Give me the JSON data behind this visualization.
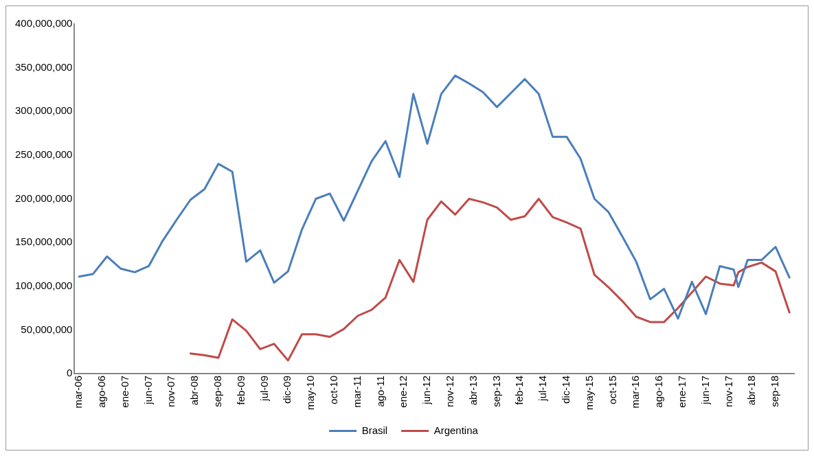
{
  "chart_data": {
    "type": "line",
    "x": [
      "2006-03",
      "2006-06",
      "2006-09",
      "2006-12",
      "2007-03",
      "2007-06",
      "2007-09",
      "2007-12",
      "2008-03",
      "2008-06",
      "2008-09",
      "2008-12",
      "2009-03",
      "2009-06",
      "2009-09",
      "2009-12",
      "2010-03",
      "2010-06",
      "2010-09",
      "2010-12",
      "2011-03",
      "2011-06",
      "2011-09",
      "2011-12",
      "2012-03",
      "2012-06",
      "2012-09",
      "2012-12",
      "2013-03",
      "2013-06",
      "2013-09",
      "2013-12",
      "2014-03",
      "2014-06",
      "2014-09",
      "2014-12",
      "2015-03",
      "2015-06",
      "2015-09",
      "2015-12",
      "2016-03",
      "2016-06",
      "2016-09",
      "2016-12",
      "2017-03",
      "2017-06",
      "2017-09",
      "2017-12",
      "2018-01",
      "2018-03",
      "2018-06",
      "2018-09",
      "2018-12"
    ],
    "series": [
      {
        "name": "Brasil",
        "color": "#4a7ebb",
        "values": [
          111000000,
          114000000,
          134000000,
          120000000,
          116000000,
          123000000,
          152000000,
          176000000,
          199000000,
          211000000,
          240000000,
          231000000,
          128000000,
          141000000,
          104000000,
          117000000,
          165000000,
          200000000,
          206000000,
          175000000,
          209000000,
          243000000,
          266000000,
          225000000,
          320000000,
          263000000,
          320000000,
          341000000,
          332000000,
          322000000,
          305000000,
          321000000,
          337000000,
          320000000,
          271000000,
          271000000,
          246000000,
          200000000,
          185000000,
          157000000,
          128000000,
          85000000,
          97000000,
          63000000,
          105000000,
          68000000,
          123000000,
          119000000,
          99000000,
          130000000,
          130000000,
          145000000,
          110000000
        ]
      },
      {
        "name": "Argentina",
        "color": "#be4b48",
        "values": [
          null,
          null,
          null,
          null,
          null,
          null,
          null,
          null,
          23000000,
          21000000,
          18000000,
          62000000,
          49000000,
          28000000,
          34000000,
          15000000,
          45000000,
          45000000,
          42000000,
          51000000,
          66000000,
          73000000,
          87000000,
          130000000,
          105000000,
          176000000,
          197000000,
          182000000,
          200000000,
          196000000,
          190000000,
          176000000,
          180000000,
          200000000,
          179000000,
          173000000,
          166000000,
          113000000,
          99000000,
          83000000,
          65000000,
          59000000,
          59000000,
          75000000,
          93000000,
          111000000,
          103000000,
          101000000,
          116000000,
          122000000,
          127000000,
          117000000,
          70000000
        ]
      }
    ],
    "xlim": [
      "2006-02",
      "2019-01"
    ],
    "xticks": [
      {
        "value": "2006-03",
        "label": "mar-06"
      },
      {
        "value": "2006-08",
        "label": "ago-06"
      },
      {
        "value": "2007-01",
        "label": "ene-07"
      },
      {
        "value": "2007-06",
        "label": "jun-07"
      },
      {
        "value": "2007-11",
        "label": "nov-07"
      },
      {
        "value": "2008-04",
        "label": "abr-08"
      },
      {
        "value": "2008-09",
        "label": "sep-08"
      },
      {
        "value": "2009-02",
        "label": "feb-09"
      },
      {
        "value": "2009-07",
        "label": "jul-09"
      },
      {
        "value": "2009-12",
        "label": "dic-09"
      },
      {
        "value": "2010-05",
        "label": "may-10"
      },
      {
        "value": "2010-10",
        "label": "oct-10"
      },
      {
        "value": "2011-03",
        "label": "mar-11"
      },
      {
        "value": "2011-08",
        "label": "ago-11"
      },
      {
        "value": "2012-01",
        "label": "ene-12"
      },
      {
        "value": "2012-06",
        "label": "jun-12"
      },
      {
        "value": "2012-11",
        "label": "nov-12"
      },
      {
        "value": "2013-04",
        "label": "abr-13"
      },
      {
        "value": "2013-09",
        "label": "sep-13"
      },
      {
        "value": "2014-02",
        "label": "feb-14"
      },
      {
        "value": "2014-07",
        "label": "jul-14"
      },
      {
        "value": "2014-12",
        "label": "dic-14"
      },
      {
        "value": "2015-05",
        "label": "may-15"
      },
      {
        "value": "2015-10",
        "label": "oct-15"
      },
      {
        "value": "2016-03",
        "label": "mar-16"
      },
      {
        "value": "2016-08",
        "label": "ago-16"
      },
      {
        "value": "2017-01",
        "label": "ene-17"
      },
      {
        "value": "2017-06",
        "label": "jun-17"
      },
      {
        "value": "2017-11",
        "label": "nov-17"
      },
      {
        "value": "2018-04",
        "label": "abr-18"
      },
      {
        "value": "2018-09",
        "label": "sep-18"
      }
    ],
    "ylim": [
      0,
      400000000
    ],
    "yticks": [
      {
        "value": 0,
        "label": "0"
      },
      {
        "value": 50000000,
        "label": "50,000,000"
      },
      {
        "value": 100000000,
        "label": "100,000,000"
      },
      {
        "value": 150000000,
        "label": "150,000,000"
      },
      {
        "value": 200000000,
        "label": "200,000,000"
      },
      {
        "value": 250000000,
        "label": "250,000,000"
      },
      {
        "value": 300000000,
        "label": "300,000,000"
      },
      {
        "value": 350000000,
        "label": "350,000,000"
      },
      {
        "value": 400000000,
        "label": "400,000,000"
      }
    ],
    "grid": false,
    "legend": "bottom",
    "marker": "none",
    "line_style": "solid"
  }
}
